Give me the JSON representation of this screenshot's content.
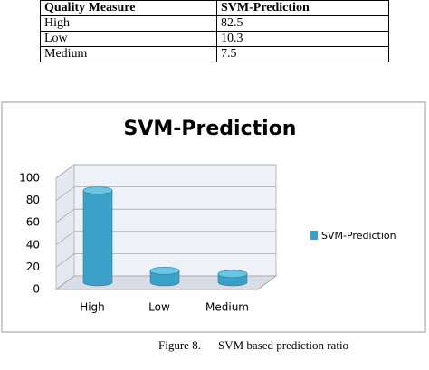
{
  "table": {
    "header": [
      "Quality Measure",
      "SVM-Prediction"
    ],
    "rows": [
      [
        "High",
        "82.5"
      ],
      [
        "Low",
        "10.3"
      ],
      [
        "Medium",
        "7.5"
      ]
    ]
  },
  "chart_data": {
    "type": "bar",
    "title": "SVM-Prediction",
    "categories": [
      "High",
      "Low",
      "Medium"
    ],
    "series": [
      {
        "name": "SVM-Prediction",
        "color": "#3aa0c8",
        "values": [
          82.5,
          10.3,
          7.5
        ]
      }
    ],
    "ylim": [
      0,
      100
    ],
    "yticks": [
      0,
      20,
      40,
      60,
      80,
      100
    ],
    "grid": true,
    "legend": "right"
  },
  "caption": {
    "label": "Figure 8.",
    "text": "SVM based prediction ratio"
  }
}
